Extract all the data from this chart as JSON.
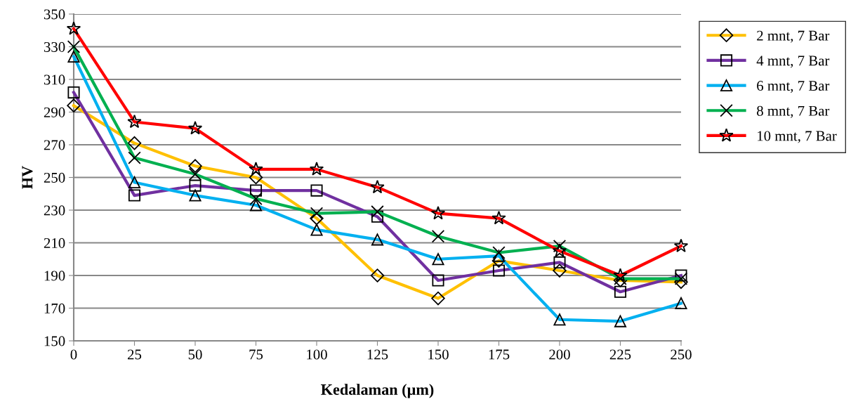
{
  "chart_data": {
    "type": "line",
    "xlabel": "Kedalaman (µm)",
    "ylabel": "HV",
    "x": [
      0,
      25,
      50,
      75,
      100,
      125,
      150,
      175,
      200,
      225,
      250
    ],
    "xlim": [
      0,
      250
    ],
    "xticks": [
      0,
      25,
      50,
      75,
      100,
      125,
      150,
      175,
      200,
      225,
      250
    ],
    "ylim": [
      150,
      350
    ],
    "yticks": [
      150,
      170,
      190,
      210,
      230,
      250,
      270,
      290,
      310,
      330,
      350
    ],
    "grid": "y",
    "legend": "right",
    "line_style": "solid",
    "series": [
      {
        "name": "2 mnt, 7 Bar",
        "color": "#ffc000",
        "marker": "diamond",
        "values": [
          294,
          271,
          257,
          250,
          225,
          190,
          176,
          199,
          193,
          187,
          186
        ]
      },
      {
        "name": "4 mnt, 7 Bar",
        "color": "#7030a0",
        "marker": "square",
        "values": [
          302,
          239,
          245,
          242,
          242,
          226,
          187,
          193,
          198,
          180,
          190
        ]
      },
      {
        "name": "6 mnt, 7 Bar",
        "color": "#00b0f0",
        "marker": "triangle",
        "values": [
          324,
          247,
          239,
          233,
          218,
          212,
          200,
          202,
          163,
          162,
          173
        ]
      },
      {
        "name": "8 mnt, 7 Bar",
        "color": "#00b050",
        "marker": "cross",
        "values": [
          330,
          262,
          252,
          237,
          228,
          229,
          214,
          204,
          208,
          188,
          188
        ]
      },
      {
        "name": "10 mnt, 7 Bar",
        "color": "#ff0000",
        "marker": "star",
        "values": [
          341,
          284,
          280,
          255,
          255,
          244,
          228,
          225,
          205,
          190,
          208
        ]
      }
    ]
  }
}
